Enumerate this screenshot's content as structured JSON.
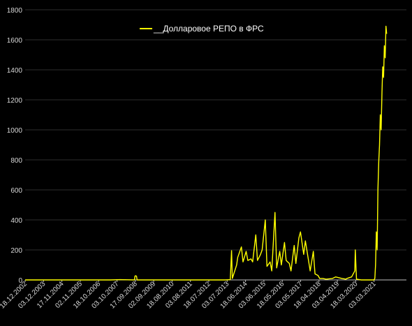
{
  "chart_data": {
    "type": "line",
    "title": "",
    "xlabel": "",
    "ylabel": "",
    "ylim": [
      0,
      1800
    ],
    "y_ticks": [
      0,
      200,
      400,
      600,
      800,
      1000,
      1200,
      1400,
      1600,
      1800
    ],
    "x_tick_labels": [
      "18.12.2002",
      "03.12.2003",
      "17.11.2004",
      "02.11.2005",
      "18.10.2006",
      "03.10.2007",
      "17.09.2008",
      "02.09.2009",
      "18.08.2010",
      "03.08.2011",
      "18.07.2012",
      "03.07.2013",
      "18.06.2014",
      "03.06.2015",
      "18.05.2016",
      "03.05.2017",
      "18.04.2018",
      "03.04.2019",
      "18.03.2020",
      "03.03.2021"
    ],
    "grid": true,
    "legend_position": "top-center",
    "background_color": "#000000",
    "series": [
      {
        "name": "__Долларовое РЕПО в ФРС",
        "color": "#ffff00",
        "x": [
          "2002-12-18",
          "2004-01-01",
          "2006-01-01",
          "2007-06-01",
          "2007-12-01",
          "2008-09-01",
          "2008-09-10",
          "2008-09-20",
          "2008-10-10",
          "2008-10-20",
          "2009-06-01",
          "2010-06-01",
          "2011-06-01",
          "2012-06-01",
          "2013-06-01",
          "2013-09-01",
          "2013-09-25",
          "2013-10-10",
          "2013-12-31",
          "2014-01-20",
          "2014-03-31",
          "2014-05-01",
          "2014-06-30",
          "2014-08-01",
          "2014-09-30",
          "2014-11-01",
          "2014-12-31",
          "2015-02-01",
          "2015-03-31",
          "2015-05-01",
          "2015-06-30",
          "2015-08-01",
          "2015-09-30",
          "2015-11-01",
          "2015-12-31",
          "2016-02-01",
          "2016-03-31",
          "2016-05-01",
          "2016-06-30",
          "2016-08-01",
          "2016-09-30",
          "2016-11-01",
          "2016-12-31",
          "2017-02-01",
          "2017-03-31",
          "2017-05-01",
          "2017-06-30",
          "2017-08-01",
          "2017-09-30",
          "2017-11-01",
          "2017-12-31",
          "2018-02-01",
          "2018-03-31",
          "2018-05-01",
          "2018-06-30",
          "2018-09-01",
          "2018-12-31",
          "2019-03-01",
          "2019-06-30",
          "2019-09-17",
          "2019-10-01",
          "2019-12-31",
          "2020-03-01",
          "2020-03-10",
          "2020-04-01",
          "2020-07-01",
          "2020-12-01",
          "2021-03-01",
          "2021-03-17",
          "2021-03-31",
          "2021-04-15",
          "2021-05-01",
          "2021-05-15",
          "2021-05-31",
          "2021-06-15",
          "2021-06-30",
          "2021-07-15",
          "2021-07-31",
          "2021-08-15",
          "2021-08-31",
          "2021-09-15",
          "2021-09-30",
          "2021-10-15",
          "2021-10-29"
        ],
        "values": [
          0,
          0,
          0,
          0,
          2,
          0,
          25,
          28,
          25,
          0,
          0,
          0,
          0,
          0,
          0,
          2,
          195,
          10,
          100,
          150,
          220,
          120,
          190,
          130,
          140,
          120,
          300,
          130,
          170,
          200,
          400,
          90,
          120,
          60,
          450,
          80,
          190,
          100,
          250,
          130,
          110,
          60,
          230,
          110,
          280,
          320,
          170,
          260,
          130,
          60,
          190,
          40,
          30,
          10,
          10,
          5,
          10,
          20,
          10,
          5,
          10,
          20,
          60,
          200,
          5,
          0,
          0,
          0,
          10,
          100,
          320,
          200,
          600,
          790,
          900,
          1100,
          1000,
          1250,
          1420,
          1350,
          1560,
          1480,
          1690,
          1640
        ]
      }
    ]
  }
}
